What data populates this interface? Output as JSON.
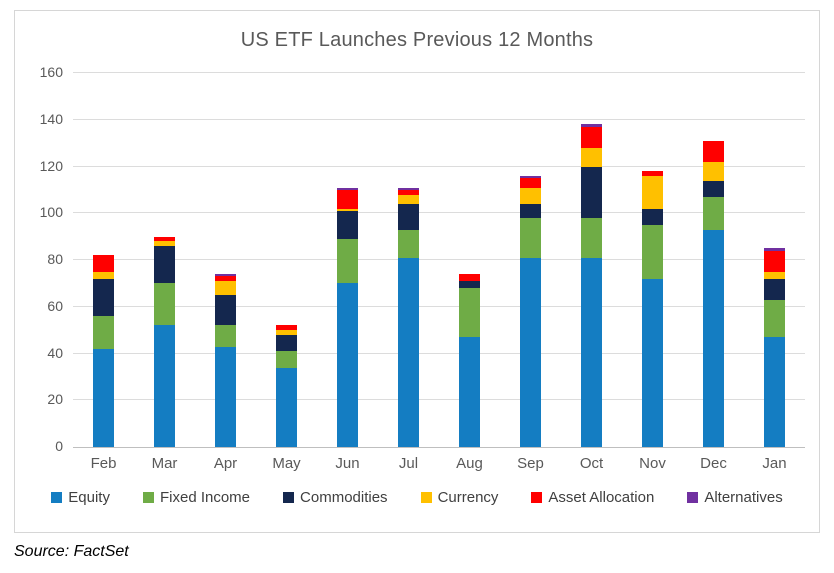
{
  "chart_data": {
    "type": "bar",
    "stacked": true,
    "title": "US ETF Launches Previous 12 Months",
    "categories": [
      "Feb",
      "Mar",
      "Apr",
      "May",
      "Jun",
      "Jul",
      "Aug",
      "Sep",
      "Oct",
      "Nov",
      "Dec",
      "Jan"
    ],
    "series": [
      {
        "name": "Equity",
        "color": "#147DC2",
        "values": [
          42,
          52,
          43,
          34,
          70,
          81,
          47,
          81,
          81,
          72,
          93,
          47
        ]
      },
      {
        "name": "Fixed Income",
        "color": "#6FAC46",
        "values": [
          14,
          18,
          9,
          7,
          19,
          12,
          21,
          17,
          17,
          23,
          14,
          16
        ]
      },
      {
        "name": "Commodities",
        "color": "#14274E",
        "values": [
          16,
          16,
          13,
          7,
          12,
          11,
          3,
          6,
          22,
          7,
          7,
          9
        ]
      },
      {
        "name": "Currency",
        "color": "#FFC000",
        "values": [
          3,
          2,
          6,
          2,
          1,
          4,
          0,
          7,
          8,
          14,
          8,
          3
        ]
      },
      {
        "name": "Asset Allocation",
        "color": "#FF0000",
        "values": [
          7,
          2,
          2,
          2,
          8,
          2,
          3,
          4,
          9,
          2,
          9,
          9
        ]
      },
      {
        "name": "Alternatives",
        "color": "#7030A0",
        "values": [
          0,
          0,
          1,
          0,
          1,
          1,
          0,
          1,
          1,
          0,
          0,
          1
        ]
      }
    ],
    "totals": [
      82,
      90,
      74,
      52,
      111,
      111,
      74,
      116,
      138,
      118,
      131,
      85
    ],
    "xlabel": "",
    "ylabel": "",
    "ylim": [
      0,
      160
    ],
    "yticks": [
      0,
      20,
      40,
      60,
      80,
      100,
      120,
      140,
      160
    ],
    "grid": true,
    "gridline_color": "#DCDCDC",
    "axis_line_color": "#BFBFBF",
    "tick_text_color": "#595959",
    "legend_position": "bottom"
  },
  "source": {
    "text": "Source: FactSet"
  }
}
